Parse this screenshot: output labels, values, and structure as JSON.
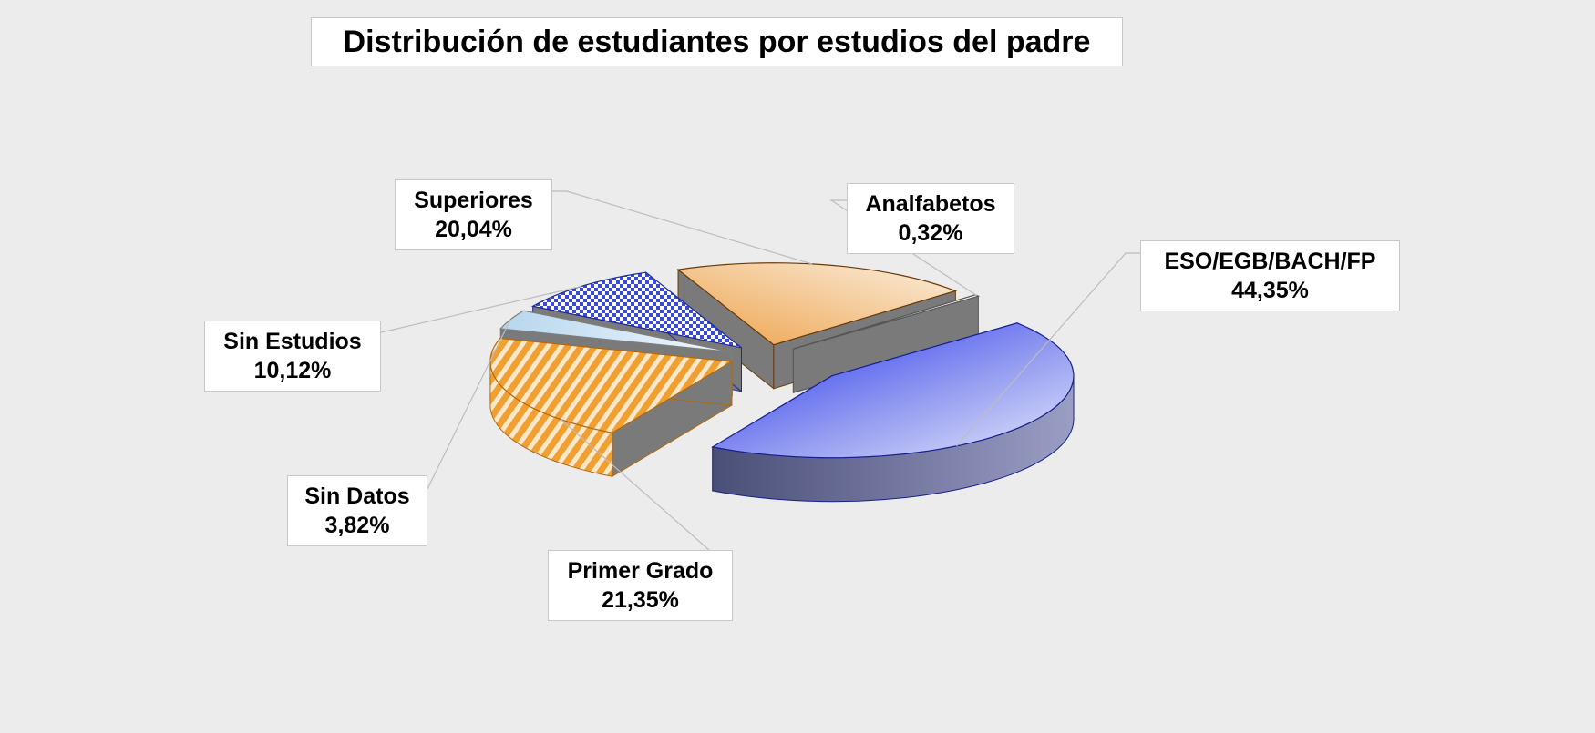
{
  "chart_data": {
    "type": "pie",
    "title": "Distribución de estudiantes por estudios del padre",
    "categories": [
      "ESO/EGB/BACH/FP",
      "Primer Grado",
      "Sin Datos",
      "Sin Estudios",
      "Superiores",
      "Analfabetos"
    ],
    "values": [
      44.35,
      21.35,
      3.82,
      10.12,
      20.04,
      0.32
    ],
    "data_labels": [
      "44,35%",
      "21,35%",
      "3,82%",
      "10,12%",
      "20,04%",
      "0,32%"
    ],
    "exploded": true,
    "three_d": true,
    "legend": "none"
  },
  "colors": {
    "eso": "#3846e6",
    "primer_grado": "#f0a030",
    "sin_datos": "#b8d8f0",
    "sin_estudios": "#3a4ad8",
    "superiores": "#f3c38a",
    "analfabetos": "#ffffff",
    "background": "#ececec"
  }
}
